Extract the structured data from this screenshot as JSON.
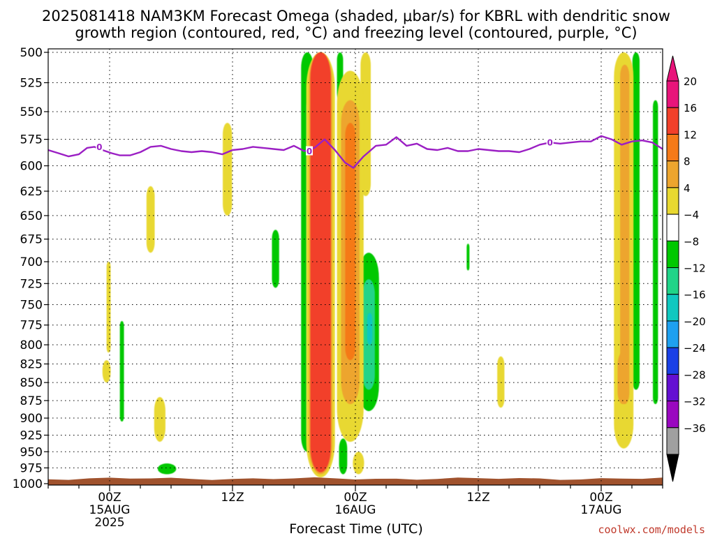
{
  "title_line1": "2025081418 NAM3KM Forecast Omega (shaded, μbar/s) for KBRL with dendritic snow",
  "title_line2": "growth region (contoured, red, °C) and freezing level (contoured, purple, °C)",
  "credit": "coolwx.com/models",
  "chart_data": {
    "type": "heatmap",
    "title": "2025081418 NAM3KM Forecast Omega (shaded, μbar/s) for KBRL with dendritic snow growth region (contoured, red, °C) and freezing level (contoured, purple, °C)",
    "xlabel": "Forecast Time (UTC)",
    "ylabel": "",
    "x_unit": "hours after 2025-08-14 18Z",
    "xlim": [
      0,
      60
    ],
    "ylim": [
      1000,
      500
    ],
    "y_scale": "pressure (hPa), 1000 at bottom",
    "grid": true,
    "x_ticks": [
      {
        "x": 6,
        "label": [
          "00Z",
          "15AUG",
          "2025"
        ]
      },
      {
        "x": 18,
        "label": [
          "12Z"
        ]
      },
      {
        "x": 30,
        "label": [
          "00Z",
          "16AUG"
        ]
      },
      {
        "x": 42,
        "label": [
          "12Z"
        ]
      },
      {
        "x": 54,
        "label": [
          "00Z",
          "17AUG"
        ]
      }
    ],
    "y_ticks": [
      500,
      525,
      550,
      575,
      600,
      625,
      650,
      675,
      700,
      725,
      750,
      775,
      800,
      825,
      850,
      875,
      900,
      925,
      950,
      975,
      1000
    ],
    "colorbar": {
      "labels": [
        "20",
        "16",
        "12",
        "8",
        "4",
        "−4",
        "−8",
        "−12",
        "−16",
        "−20",
        "−24",
        "−28",
        "−32",
        "−36"
      ],
      "colors": [
        "#e8147a",
        "#f2402a",
        "#f57a18",
        "#eda52e",
        "#e8d830",
        "#ffffff",
        "#00c800",
        "#20d488",
        "#10c8c0",
        "#1ea0f0",
        "#1a40e6",
        "#6410d2",
        "#9a08c0",
        "#a0a0a0"
      ],
      "top_arrow_color": "#e8147a",
      "bottom_arrow_color": "#000000"
    },
    "freezing_level": {
      "value_label": "0",
      "color": "#9b1fc4",
      "points": [
        [
          0,
          585
        ],
        [
          1,
          588
        ],
        [
          2,
          591
        ],
        [
          3,
          589
        ],
        [
          3.8,
          583
        ],
        [
          4.5,
          582
        ],
        [
          5.3,
          585
        ],
        [
          6.2,
          588
        ],
        [
          7,
          590
        ],
        [
          8,
          590
        ],
        [
          9,
          587
        ],
        [
          10,
          582
        ],
        [
          11,
          581
        ],
        [
          12,
          584
        ],
        [
          13,
          586
        ],
        [
          14,
          587
        ],
        [
          15,
          586
        ],
        [
          16,
          587
        ],
        [
          17,
          589
        ],
        [
          18,
          585
        ],
        [
          19,
          584
        ],
        [
          20,
          582
        ],
        [
          21,
          583
        ],
        [
          22,
          584
        ],
        [
          23,
          585
        ],
        [
          24,
          581
        ],
        [
          25,
          586
        ],
        [
          26,
          583
        ],
        [
          27,
          575
        ],
        [
          28,
          585
        ],
        [
          29,
          597
        ],
        [
          29.8,
          602
        ],
        [
          30.8,
          591
        ],
        [
          32,
          581
        ],
        [
          33,
          580
        ],
        [
          34,
          573
        ],
        [
          35,
          581
        ],
        [
          36,
          579
        ],
        [
          37,
          584
        ],
        [
          38,
          585
        ],
        [
          39,
          583
        ],
        [
          40,
          586
        ],
        [
          41,
          586
        ],
        [
          42,
          584
        ],
        [
          43,
          585
        ],
        [
          44,
          586
        ],
        [
          45,
          586
        ],
        [
          46,
          587
        ],
        [
          47,
          584
        ],
        [
          48,
          580
        ],
        [
          49,
          578
        ],
        [
          50,
          579
        ],
        [
          51,
          578
        ],
        [
          52,
          577
        ],
        [
          53,
          577
        ],
        [
          54,
          572
        ],
        [
          55,
          575
        ],
        [
          56,
          580
        ],
        [
          57,
          577
        ],
        [
          58,
          576
        ],
        [
          59,
          578
        ],
        [
          60,
          584
        ]
      ],
      "label_points": [
        [
          5,
          582
        ],
        [
          25.5,
          586
        ],
        [
          49,
          578
        ]
      ]
    },
    "shaded_regions": [
      {
        "value": -6,
        "x": 25.3,
        "y_top": 500,
        "y_bottom": 950,
        "half_width": 0.6
      },
      {
        "value": -10,
        "x": 25.5,
        "y_top": 540,
        "y_bottom": 930,
        "half_width": 0.3
      },
      {
        "value": -6,
        "x": 31.3,
        "y_top": 690,
        "y_bottom": 890,
        "half_width": 1.0
      },
      {
        "value": -10,
        "x": 31.3,
        "y_top": 720,
        "y_bottom": 860,
        "half_width": 0.6
      },
      {
        "value": -14,
        "x": 31.4,
        "y_top": 760,
        "y_bottom": 800,
        "half_width": 0.25
      },
      {
        "value": -6,
        "x": 28.8,
        "y_top": 930,
        "y_bottom": 985,
        "half_width": 0.4
      },
      {
        "value": -6,
        "x": 22.2,
        "y_top": 665,
        "y_bottom": 730,
        "half_width": 0.35
      },
      {
        "value": -6,
        "x": 28.5,
        "y_top": 500,
        "y_bottom": 540,
        "half_width": 0.3
      },
      {
        "value": -6,
        "x": 7.2,
        "y_top": 770,
        "y_bottom": 905,
        "half_width": 0.2
      },
      {
        "value": -6,
        "x": 41.0,
        "y_top": 680,
        "y_bottom": 710,
        "half_width": 0.12
      },
      {
        "value": -6,
        "x": 57.4,
        "y_top": 500,
        "y_bottom": 860,
        "half_width": 0.35
      },
      {
        "value": -6,
        "x": 59.3,
        "y_top": 540,
        "y_bottom": 880,
        "half_width": 0.25
      },
      {
        "value": -6,
        "x": 55.8,
        "y_top": 870,
        "y_bottom": 930,
        "half_width": 0.2
      },
      {
        "value": -6,
        "x": 11.6,
        "y_top": 968,
        "y_bottom": 985,
        "half_width": 0.9
      },
      {
        "value": 6,
        "x": 17.5,
        "y_top": 560,
        "y_bottom": 650,
        "half_width": 0.45
      },
      {
        "value": 6,
        "x": 10.0,
        "y_top": 620,
        "y_bottom": 690,
        "half_width": 0.4
      },
      {
        "value": 6,
        "x": 5.9,
        "y_top": 700,
        "y_bottom": 810,
        "half_width": 0.2
      },
      {
        "value": 6,
        "x": 5.7,
        "y_top": 820,
        "y_bottom": 850,
        "half_width": 0.4
      },
      {
        "value": 6,
        "x": 10.9,
        "y_top": 870,
        "y_bottom": 935,
        "half_width": 0.55
      },
      {
        "value": 6,
        "x": 31.0,
        "y_top": 500,
        "y_bottom": 630,
        "half_width": 0.5
      },
      {
        "value": 6,
        "x": 29.5,
        "y_top": 515,
        "y_bottom": 935,
        "half_width": 1.3
      },
      {
        "value": 10,
        "x": 29.5,
        "y_top": 540,
        "y_bottom": 880,
        "half_width": 0.9
      },
      {
        "value": 14,
        "x": 29.5,
        "y_top": 560,
        "y_bottom": 820,
        "half_width": 0.5
      },
      {
        "value": 6,
        "x": 30.3,
        "y_top": 950,
        "y_bottom": 985,
        "half_width": 0.55
      },
      {
        "value": 6,
        "x": 44.2,
        "y_top": 815,
        "y_bottom": 885,
        "half_width": 0.35
      },
      {
        "value": 6,
        "x": 56.2,
        "y_top": 500,
        "y_bottom": 945,
        "half_width": 0.95
      },
      {
        "value": 10,
        "x": 56.3,
        "y_top": 510,
        "y_bottom": 880,
        "half_width": 0.45
      },
      {
        "value": 10,
        "x": 56.1,
        "y_top": 810,
        "y_bottom": 880,
        "half_width": 0.5
      },
      {
        "value": 6,
        "x": 26.6,
        "y_top": 500,
        "y_bottom": 990,
        "half_width": 1.4
      },
      {
        "value": 10,
        "x": 26.6,
        "y_top": 500,
        "y_bottom": 985,
        "half_width": 1.15
      },
      {
        "value": 18,
        "x": 26.6,
        "y_top": 500,
        "y_bottom": 982,
        "half_width": 1.0
      }
    ],
    "terrain": {
      "color": "#a0522d",
      "top_pressure": 992
    }
  }
}
